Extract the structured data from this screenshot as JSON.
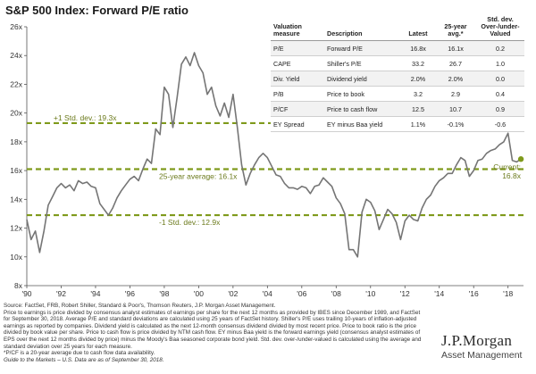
{
  "title": "S&P 500 Index: Forward P/E ratio",
  "chart_data": {
    "type": "line",
    "title": "S&P 500 Index: Forward P/E ratio",
    "xlabel": "",
    "ylabel": "",
    "x_ticks": [
      "'90",
      "'92",
      "'94",
      "'96",
      "'98",
      "'00",
      "'02",
      "'04",
      "'06",
      "'08",
      "'10",
      "'12",
      "'14",
      "'16",
      "'18"
    ],
    "x_range": [
      1990,
      2018.9
    ],
    "y_ticks": [
      "8x",
      "10x",
      "12x",
      "14x",
      "16x",
      "18x",
      "20x",
      "22x",
      "24x",
      "26x"
    ],
    "ylim": [
      8,
      26
    ],
    "grid": false,
    "series": [
      {
        "x": [
          1990.0,
          1990.25,
          1990.5,
          1990.75,
          1991.0,
          1991.25,
          1991.5,
          1991.75,
          1992.0,
          1992.25,
          1992.5,
          1992.75,
          1993.0,
          1993.25,
          1993.5,
          1993.75,
          1994.0,
          1994.25,
          1994.5,
          1994.75,
          1995.0,
          1995.25,
          1995.5,
          1995.75,
          1996.0,
          1996.25,
          1996.5,
          1996.75,
          1997.0,
          1997.25,
          1997.5,
          1997.75,
          1998.0,
          1998.25,
          1998.5,
          1998.75,
          1999.0,
          1999.25,
          1999.5,
          1999.75,
          2000.0,
          2000.25,
          2000.5,
          2000.75,
          2001.0,
          2001.25,
          2001.5,
          2001.75,
          2002.0,
          2002.25,
          2002.5,
          2002.75,
          2003.0,
          2003.25,
          2003.5,
          2003.75,
          2004.0,
          2004.25,
          2004.5,
          2004.75,
          2005.0,
          2005.25,
          2005.5,
          2005.75,
          2006.0,
          2006.25,
          2006.5,
          2006.75,
          2007.0,
          2007.25,
          2007.5,
          2007.75,
          2008.0,
          2008.25,
          2008.5,
          2008.75,
          2009.0,
          2009.25,
          2009.5,
          2009.75,
          2010.0,
          2010.25,
          2010.5,
          2010.75,
          2011.0,
          2011.25,
          2011.5,
          2011.75,
          2012.0,
          2012.25,
          2012.5,
          2012.75,
          2013.0,
          2013.25,
          2013.5,
          2013.75,
          2014.0,
          2014.25,
          2014.5,
          2014.75,
          2015.0,
          2015.25,
          2015.5,
          2015.75,
          2016.0,
          2016.25,
          2016.5,
          2016.75,
          2017.0,
          2017.25,
          2017.5,
          2017.75,
          2018.0,
          2018.25,
          2018.5,
          2018.75
        ],
        "values": [
          12.6,
          11.2,
          11.8,
          10.3,
          11.8,
          13.6,
          14.2,
          14.8,
          15.1,
          14.8,
          15.0,
          14.6,
          15.3,
          15.1,
          15.2,
          14.9,
          14.8,
          13.7,
          13.3,
          12.9,
          13.4,
          14.1,
          14.6,
          15.0,
          15.4,
          15.6,
          15.3,
          16.1,
          16.8,
          16.5,
          18.9,
          18.5,
          21.8,
          21.3,
          19.0,
          21.1,
          23.4,
          23.9,
          23.3,
          24.2,
          23.3,
          22.8,
          21.3,
          21.8,
          20.5,
          19.8,
          20.7,
          19.7,
          21.3,
          19.0,
          16.4,
          15.0,
          15.8,
          16.4,
          16.9,
          17.2,
          16.9,
          16.3,
          15.7,
          15.6,
          15.1,
          14.8,
          14.8,
          14.7,
          14.9,
          14.8,
          14.4,
          14.9,
          15.0,
          15.5,
          15.2,
          14.9,
          14.1,
          13.7,
          13.0,
          10.5,
          10.5,
          10.0,
          13.1,
          14.0,
          13.8,
          13.2,
          11.9,
          12.6,
          13.3,
          13.0,
          12.4,
          11.2,
          12.5,
          12.9,
          12.6,
          12.5,
          13.4,
          14.0,
          14.3,
          14.9,
          15.3,
          15.5,
          15.8,
          15.8,
          16.4,
          16.9,
          16.7,
          15.6,
          16.0,
          16.7,
          16.8,
          17.2,
          17.4,
          17.5,
          17.8,
          18.0,
          18.6,
          16.7,
          16.6,
          16.8
        ]
      }
    ],
    "reference_lines": [
      {
        "label": "+1 Std. dev.: 19.3x",
        "value": 19.3
      },
      {
        "label": "25-year average: 16.1x",
        "value": 16.1
      },
      {
        "label": "-1 Std. dev.: 12.9x",
        "value": 12.9
      }
    ],
    "current_label": "Current:\n16.8x",
    "current_value": 16.8,
    "colors": {
      "line": "#757575",
      "reference": "#7f9a1c",
      "annotation": "#6b7a1c"
    }
  },
  "table": {
    "headers": [
      "Valuation measure",
      "Description",
      "Latest",
      "25-year avg.*",
      "Std. dev. Over-/under-Valued"
    ],
    "rows": [
      [
        "P/E",
        "Forward P/E",
        "16.8x",
        "16.1x",
        "0.2"
      ],
      [
        "CAPE",
        "Shiller's P/E",
        "33.2",
        "26.7",
        "1.0"
      ],
      [
        "Div. Yield",
        "Dividend yield",
        "2.0%",
        "2.0%",
        "0.0"
      ],
      [
        "P/B",
        "Price to book",
        "3.2",
        "2.9",
        "0.4"
      ],
      [
        "P/CF",
        "Price to cash flow",
        "12.5",
        "10.7",
        "0.9"
      ],
      [
        "EY Spread",
        "EY minus Baa yield",
        "1.1%",
        "-0.1%",
        "-0.6"
      ]
    ]
  },
  "footnotes": {
    "source": "Source: FactSet, FRB, Robert Shiller, Standard & Poor's, Thomson Reuters, J.P. Morgan Asset Management.",
    "body": "Price to earnings is price divided by consensus analyst estimates of earnings per share for the next 12 months as provided by IBES since December 1989, and FactSet for September 30, 2018. Average P/E and standard deviations are calculated using 25 years of FactSet history. Shiller's P/E uses trailing 10-years of inflation-adjusted earnings as reported by companies. Dividend yield is calculated as the next 12-month consensus dividend divided by most recent price. Price to book ratio is the price divided by book value per share. Price to cash flow is price divided by NTM cash flow. EY minus Baa yield is the forward earnings yield (consensus analyst estimates of EPS over the next 12 months divided by price) minus the Moody's Baa seasoned corporate bond yield. Std. dev. over-/under-valued is calculated using the average and standard deviation over 25 years for each measure.",
    "pcf": "*P/CF is a 20-year average due to cash flow data availability.",
    "guide": "Guide to the Markets – U.S. Data are as of September 30, 2018."
  },
  "logo": {
    "name": "J.P.Morgan",
    "sub": "Asset Management"
  }
}
